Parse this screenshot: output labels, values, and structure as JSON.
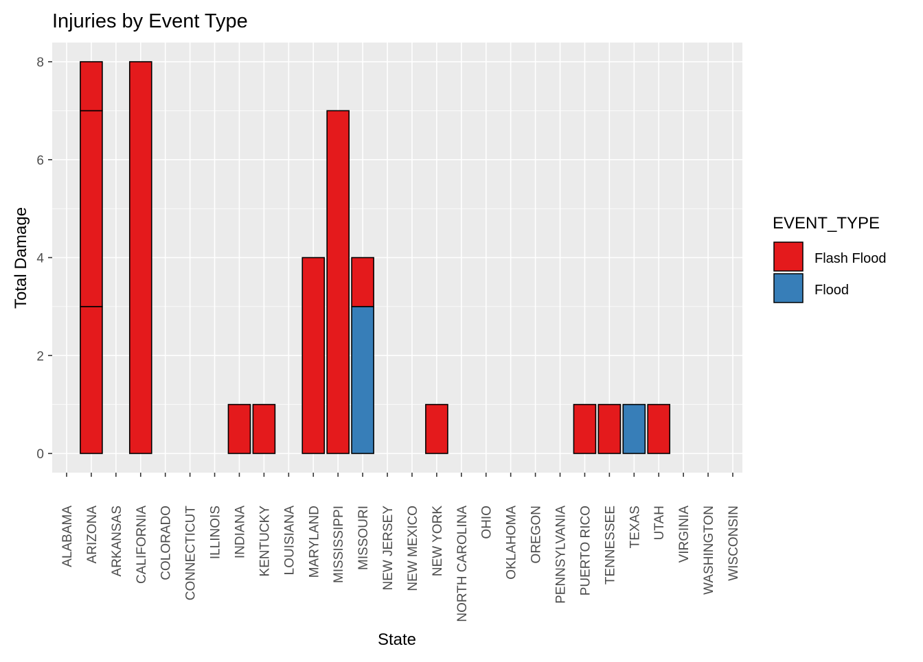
{
  "chart_data": {
    "type": "bar",
    "stacked": true,
    "title": "Injuries by Event Type",
    "xlabel": "State",
    "ylabel": "Total Damage",
    "ylim": [
      0,
      8.45
    ],
    "yticks": [
      0,
      2,
      4,
      6,
      8
    ],
    "grid": true,
    "legend": {
      "title": "EVENT_TYPE",
      "position": "right",
      "entries": [
        {
          "name": "Flash Flood",
          "color": "#E41A1C"
        },
        {
          "name": "Flood",
          "color": "#377EB8"
        }
      ]
    },
    "categories": [
      "ALABAMA",
      "ARIZONA",
      "ARKANSAS",
      "CALIFORNIA",
      "COLORADO",
      "CONNECTICUT",
      "ILLINOIS",
      "INDIANA",
      "KENTUCKY",
      "LOUISIANA",
      "MARYLAND",
      "MISSISSIPPI",
      "MISSOURI",
      "NEW JERSEY",
      "NEW MEXICO",
      "NEW YORK",
      "NORTH CAROLINA",
      "OHIO",
      "OKLAHOMA",
      "OREGON",
      "PENNSYLVANIA",
      "PUERTO RICO",
      "TENNESSEE",
      "TEXAS",
      "UTAH",
      "VIRGINIA",
      "WASHINGTON",
      "WISCONSIN"
    ],
    "bars": [
      {
        "segments": [
          {
            "type": "Flash Flood",
            "value": 0
          }
        ]
      },
      {
        "segments": [
          {
            "type": "Flash Flood",
            "value": 3
          },
          {
            "type": "Flash Flood",
            "value": 4
          },
          {
            "type": "Flash Flood",
            "value": 1
          }
        ]
      },
      {
        "segments": [
          {
            "type": "Flash Flood",
            "value": 0
          }
        ]
      },
      {
        "segments": [
          {
            "type": "Flash Flood",
            "value": 8
          }
        ]
      },
      {
        "segments": [
          {
            "type": "Flash Flood",
            "value": 0
          }
        ]
      },
      {
        "segments": [
          {
            "type": "Flash Flood",
            "value": 0
          }
        ]
      },
      {
        "segments": [
          {
            "type": "Flash Flood",
            "value": 0
          }
        ]
      },
      {
        "segments": [
          {
            "type": "Flash Flood",
            "value": 1
          }
        ]
      },
      {
        "segments": [
          {
            "type": "Flash Flood",
            "value": 1
          }
        ]
      },
      {
        "segments": [
          {
            "type": "Flash Flood",
            "value": 0
          }
        ]
      },
      {
        "segments": [
          {
            "type": "Flash Flood",
            "value": 4
          }
        ]
      },
      {
        "segments": [
          {
            "type": "Flash Flood",
            "value": 7
          }
        ]
      },
      {
        "segments": [
          {
            "type": "Flood",
            "value": 3
          },
          {
            "type": "Flash Flood",
            "value": 1
          }
        ]
      },
      {
        "segments": [
          {
            "type": "Flash Flood",
            "value": 0
          }
        ]
      },
      {
        "segments": [
          {
            "type": "Flash Flood",
            "value": 0
          }
        ]
      },
      {
        "segments": [
          {
            "type": "Flash Flood",
            "value": 1
          }
        ]
      },
      {
        "segments": [
          {
            "type": "Flash Flood",
            "value": 0
          }
        ]
      },
      {
        "segments": [
          {
            "type": "Flash Flood",
            "value": 0
          }
        ]
      },
      {
        "segments": [
          {
            "type": "Flash Flood",
            "value": 0
          }
        ]
      },
      {
        "segments": [
          {
            "type": "Flash Flood",
            "value": 0
          }
        ]
      },
      {
        "segments": [
          {
            "type": "Flash Flood",
            "value": 0
          }
        ]
      },
      {
        "segments": [
          {
            "type": "Flash Flood",
            "value": 1
          }
        ]
      },
      {
        "segments": [
          {
            "type": "Flash Flood",
            "value": 1
          }
        ]
      },
      {
        "segments": [
          {
            "type": "Flood",
            "value": 1
          }
        ]
      },
      {
        "segments": [
          {
            "type": "Flash Flood",
            "value": 1
          }
        ]
      },
      {
        "segments": [
          {
            "type": "Flash Flood",
            "value": 0
          }
        ]
      },
      {
        "segments": [
          {
            "type": "Flash Flood",
            "value": 0
          }
        ]
      },
      {
        "segments": [
          {
            "type": "Flash Flood",
            "value": 0
          }
        ]
      }
    ]
  }
}
